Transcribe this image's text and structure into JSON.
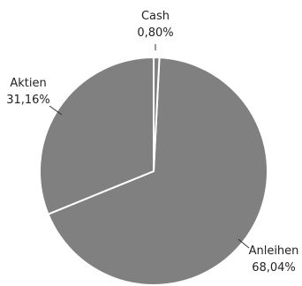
{
  "chart_data": {
    "type": "pie",
    "slices": [
      {
        "label": "Anleihen",
        "value_text": "68,04%",
        "value": 68.04,
        "color": "#808080"
      },
      {
        "label": "Aktien",
        "value_text": "31,16%",
        "value": 31.16,
        "color": "#808080"
      },
      {
        "label": "Cash",
        "value_text": "0,80%",
        "value": 0.8,
        "color": "#808080"
      }
    ],
    "title": "",
    "start_angle_deg": 0,
    "direction": "clockwise",
    "legend": "none"
  }
}
